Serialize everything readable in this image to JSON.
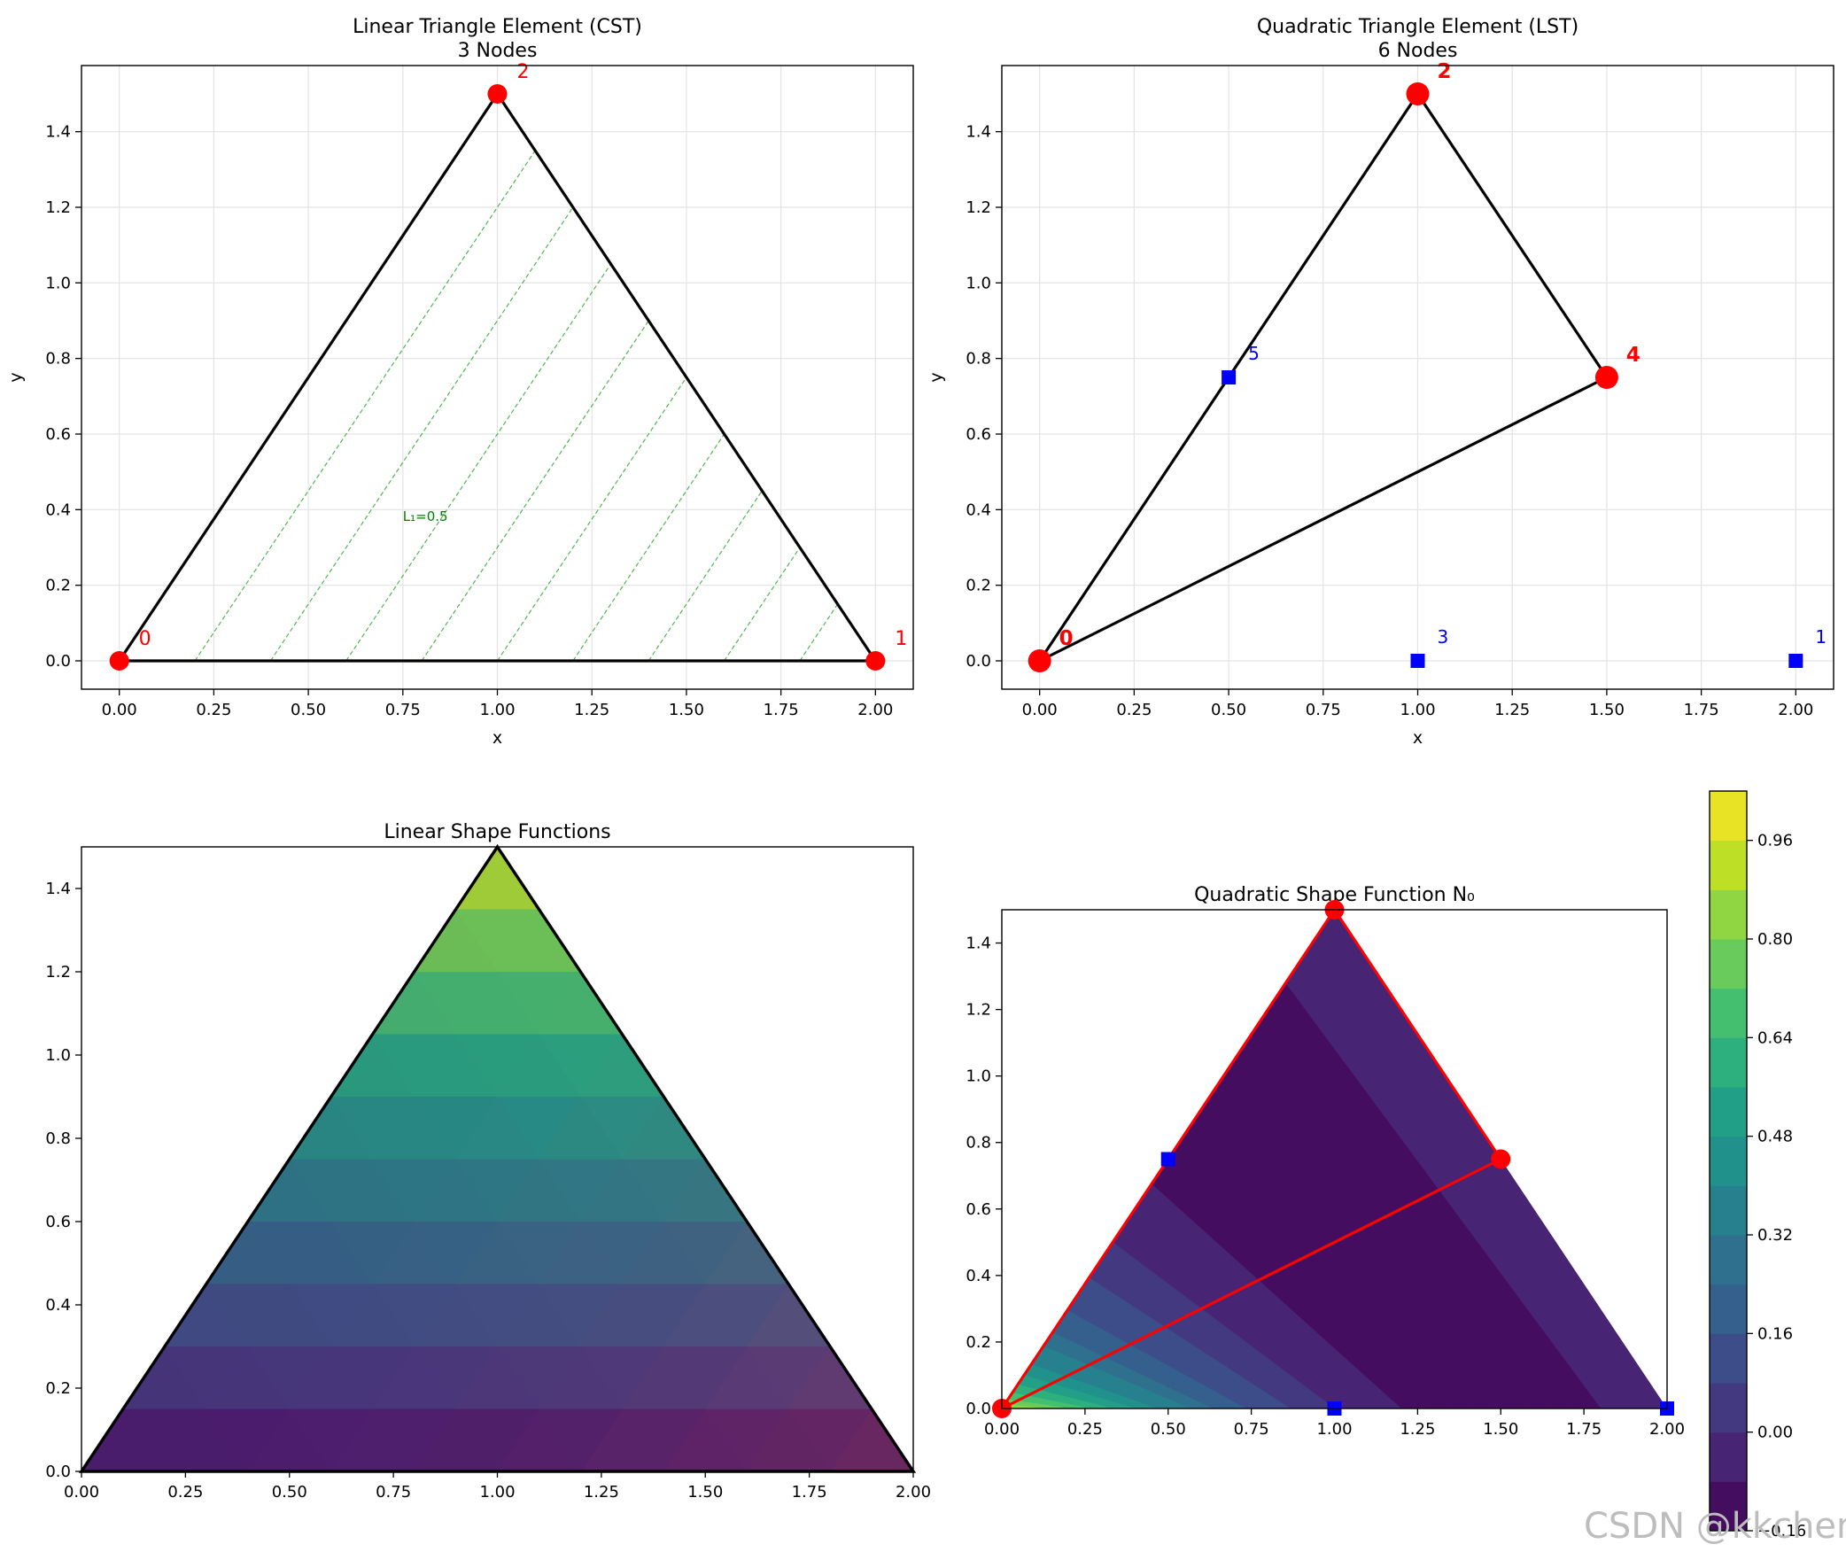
{
  "colors": {
    "node_red": "#ff0000",
    "node_blue": "#0000ff",
    "edge": "#000000",
    "contour_green": "#2ca02c",
    "label_green": "#008000"
  },
  "watermark": "CSDN @kkchenjj",
  "chart_data": [
    {
      "id": "cst",
      "type": "scatter",
      "title": "Linear Triangle Element (CST)\n3 Nodes",
      "xlabel": "x",
      "ylabel": "y",
      "xlim": [
        -0.1,
        2.1
      ],
      "ylim": [
        -0.075,
        1.575
      ],
      "xticks": [
        0.0,
        0.25,
        0.5,
        0.75,
        1.0,
        1.25,
        1.5,
        1.75,
        2.0
      ],
      "xtick_labels": [
        "0.00",
        "0.25",
        "0.50",
        "0.75",
        "1.00",
        "1.25",
        "1.50",
        "1.75",
        "2.00"
      ],
      "yticks": [
        0.0,
        0.2,
        0.4,
        0.6,
        0.8,
        1.0,
        1.2,
        1.4
      ],
      "ytick_labels": [
        "0.0",
        "0.2",
        "0.4",
        "0.6",
        "0.8",
        "1.0",
        "1.2",
        "1.4"
      ],
      "grid": true,
      "edges": [
        [
          0,
          0,
          2,
          0
        ],
        [
          2,
          0,
          1,
          1.5
        ],
        [
          1,
          1.5,
          0,
          0
        ]
      ],
      "nodes": [
        {
          "label": "0",
          "x": 0.0,
          "y": 0.0
        },
        {
          "label": "1",
          "x": 2.0,
          "y": 0.0
        },
        {
          "label": "2",
          "x": 1.0,
          "y": 1.5
        }
      ],
      "contour_levels": [
        0.1,
        0.2,
        0.3,
        0.4,
        0.5,
        0.6,
        0.7,
        0.8,
        0.9
      ],
      "annotation": {
        "text": "L₁=0.5",
        "x": 0.75,
        "y": 0.37
      }
    },
    {
      "id": "lst",
      "type": "scatter",
      "title": "Quadratic Triangle Element (LST)\n6 Nodes",
      "xlabel": "x",
      "ylabel": "y",
      "xlim": [
        -0.1,
        2.1
      ],
      "ylim": [
        -0.075,
        1.575
      ],
      "xticks": [
        0.0,
        0.25,
        0.5,
        0.75,
        1.0,
        1.25,
        1.5,
        1.75,
        2.0
      ],
      "xtick_labels": [
        "0.00",
        "0.25",
        "0.50",
        "0.75",
        "1.00",
        "1.25",
        "1.50",
        "1.75",
        "2.00"
      ],
      "yticks": [
        0.0,
        0.2,
        0.4,
        0.6,
        0.8,
        1.0,
        1.2,
        1.4
      ],
      "ytick_labels": [
        "0.0",
        "0.2",
        "0.4",
        "0.6",
        "0.8",
        "1.0",
        "1.2",
        "1.4"
      ],
      "grid": true,
      "edges": [
        [
          0,
          0,
          1.5,
          0.75
        ],
        [
          1.5,
          0.75,
          1,
          1.5
        ],
        [
          1,
          1.5,
          0,
          0
        ]
      ],
      "corner_nodes": [
        {
          "label": "0",
          "x": 0.0,
          "y": 0.0
        },
        {
          "label": "2",
          "x": 1.0,
          "y": 1.5
        },
        {
          "label": "4",
          "x": 1.5,
          "y": 0.75
        }
      ],
      "mid_nodes": [
        {
          "label": "1",
          "x": 2.0,
          "y": 0.0
        },
        {
          "label": "3",
          "x": 1.0,
          "y": 0.0
        },
        {
          "label": "5",
          "x": 0.5,
          "y": 0.75
        }
      ]
    },
    {
      "id": "linear_sf",
      "type": "heatmap",
      "title": "Linear Shape Functions",
      "xlim": [
        0.0,
        2.0
      ],
      "ylim": [
        0.0,
        1.5
      ],
      "xticks": [
        0.0,
        0.25,
        0.5,
        0.75,
        1.0,
        1.25,
        1.5,
        1.75,
        2.0
      ],
      "xtick_labels": [
        "0.00",
        "0.25",
        "0.50",
        "0.75",
        "1.00",
        "1.25",
        "1.50",
        "1.75",
        "2.00"
      ],
      "yticks": [
        0.0,
        0.2,
        0.4,
        0.6,
        0.8,
        1.0,
        1.2,
        1.4
      ],
      "ytick_labels": [
        "0.0",
        "0.2",
        "0.4",
        "0.6",
        "0.8",
        "1.0",
        "1.2",
        "1.4"
      ],
      "domain_vertices": [
        [
          0,
          0
        ],
        [
          2,
          0
        ],
        [
          1,
          1.5
        ]
      ],
      "row_bands": 10,
      "overlay_colors": [
        "#440154",
        "#e2462f",
        "#e0d52a"
      ]
    },
    {
      "id": "quad_sf",
      "type": "heatmap",
      "title": "Quadratic Shape Function N₀",
      "xlim": [
        0.0,
        2.0
      ],
      "ylim": [
        0.0,
        1.5
      ],
      "xticks": [
        0.0,
        0.25,
        0.5,
        0.75,
        1.0,
        1.25,
        1.5,
        1.75,
        2.0
      ],
      "xtick_labels": [
        "0.00",
        "0.25",
        "0.50",
        "0.75",
        "1.00",
        "1.25",
        "1.50",
        "1.75",
        "2.00"
      ],
      "yticks": [
        0.0,
        0.2,
        0.4,
        0.6,
        0.8,
        1.0,
        1.2,
        1.4
      ],
      "ytick_labels": [
        "0.0",
        "0.2",
        "0.4",
        "0.6",
        "0.8",
        "1.0",
        "1.2",
        "1.4"
      ],
      "domain_vertices": [
        [
          0,
          0
        ],
        [
          2,
          0
        ],
        [
          1,
          1.5
        ]
      ],
      "edges": [
        [
          0,
          0,
          1.5,
          0.75
        ],
        [
          1.5,
          0.75,
          1,
          1.5
        ],
        [
          1,
          1.5,
          0,
          0
        ]
      ],
      "corner_nodes": [
        {
          "x": 0.0,
          "y": 0.0
        },
        {
          "x": 1.0,
          "y": 1.5
        },
        {
          "x": 1.5,
          "y": 0.75
        }
      ],
      "mid_nodes": [
        {
          "x": 2.0,
          "y": 0.0
        },
        {
          "x": 1.0,
          "y": 0.0
        },
        {
          "x": 0.5,
          "y": 0.75
        }
      ],
      "colorbar": {
        "min": -0.16,
        "max": 1.04,
        "ticks": [
          -0.16,
          0.0,
          0.16,
          0.32,
          0.48,
          0.64,
          0.8,
          0.96
        ],
        "tick_labels": [
          "−0.16",
          "0.00",
          "0.16",
          "0.32",
          "0.48",
          "0.64",
          "0.80",
          "0.96"
        ],
        "levels": 15,
        "colormap": [
          "#440154",
          "#482475",
          "#414487",
          "#355f8d",
          "#2a788e",
          "#21918c",
          "#22a884",
          "#44bf70",
          "#7ad151",
          "#bddf26",
          "#fde725"
        ]
      }
    }
  ]
}
